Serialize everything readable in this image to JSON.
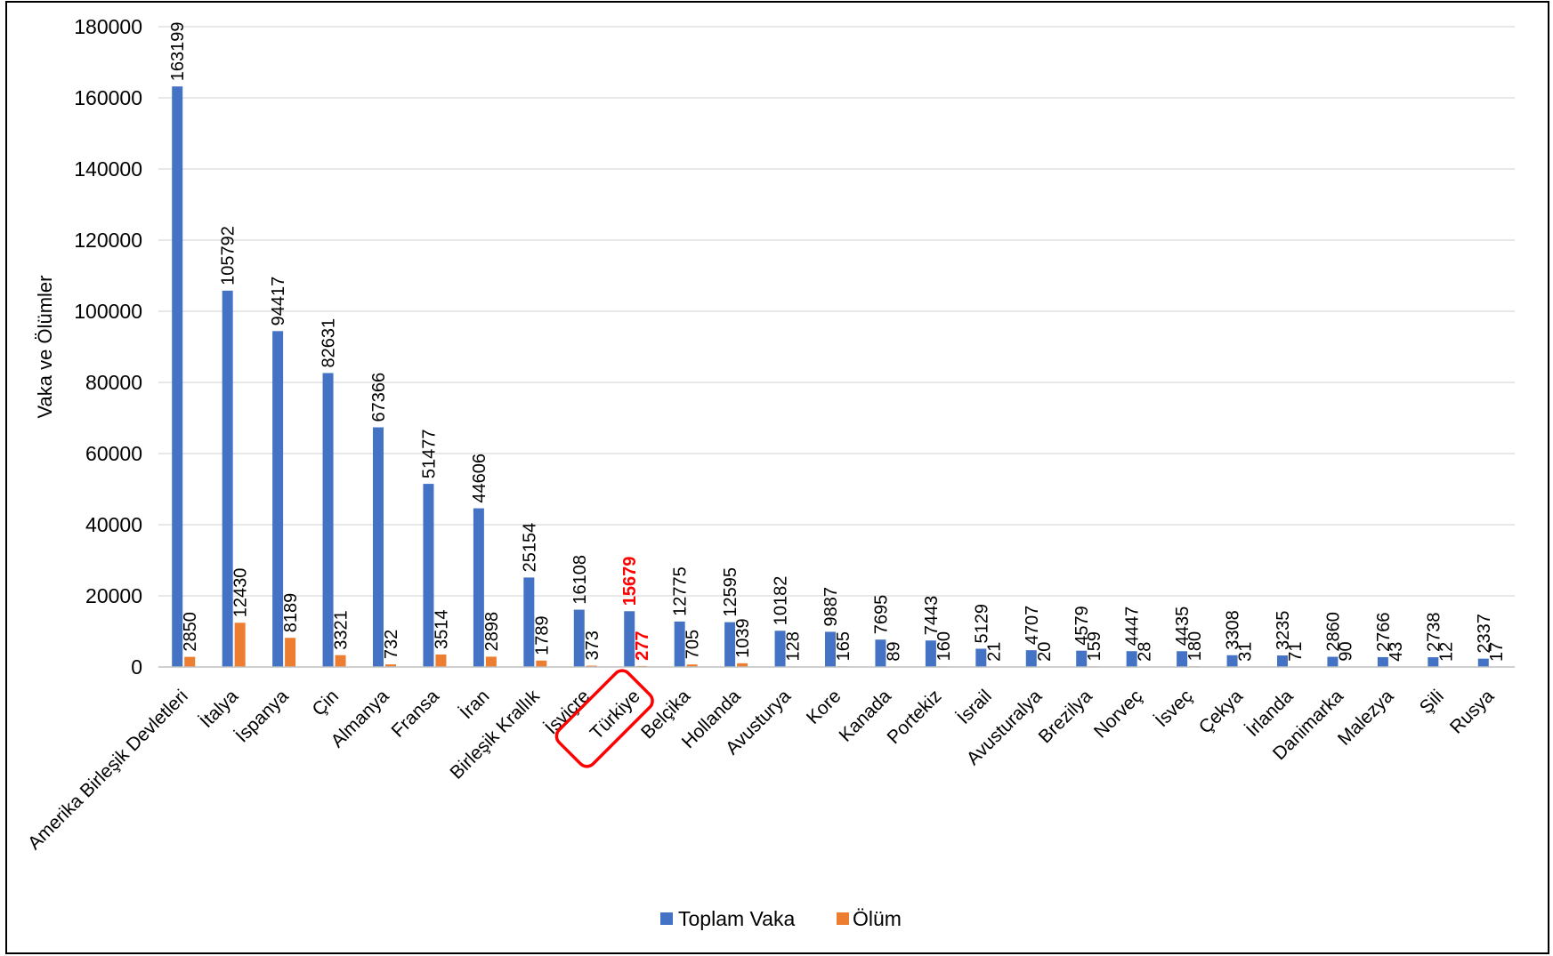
{
  "chart_data": {
    "type": "bar",
    "title": "",
    "xlabel": "",
    "ylabel": "Vaka ve Ölümler",
    "ylim": [
      0,
      180000
    ],
    "yticks": [
      0,
      20000,
      40000,
      60000,
      80000,
      100000,
      120000,
      140000,
      160000,
      180000
    ],
    "grid": true,
    "legend_position": "bottom",
    "highlighted_category": "Türkiye",
    "highlight_color": "#ff0000",
    "categories": [
      "Amerika Birleşik Devletleri",
      "İtalya",
      "İspanya",
      "Çin",
      "Almanya",
      "Fransa",
      "İran",
      "Birleşik Krallık",
      "İsviçre",
      "Türkiye",
      "Belçika",
      "Hollanda",
      "Avusturya",
      "Kore",
      "Kanada",
      "Portekiz",
      "İsrail",
      "Avusturalya",
      "Brezilya",
      "Norveç",
      "İsveç",
      "Çekya",
      "İrlanda",
      "Danimarka",
      "Malezya",
      "Şili",
      "Rusya"
    ],
    "series": [
      {
        "name": "Toplam Vaka",
        "color": "#4472c4",
        "values": [
          163199,
          105792,
          94417,
          82631,
          67366,
          51477,
          44606,
          25154,
          16108,
          15679,
          12775,
          12595,
          10182,
          9887,
          7695,
          7443,
          5129,
          4707,
          4579,
          4447,
          4435,
          3308,
          3235,
          2860,
          2766,
          2738,
          2337
        ]
      },
      {
        "name": "Ölüm",
        "color": "#ed7d31",
        "values": [
          2850,
          12430,
          8189,
          3321,
          732,
          3514,
          2898,
          1789,
          373,
          277,
          705,
          1039,
          128,
          165,
          89,
          160,
          21,
          20,
          159,
          28,
          180,
          31,
          71,
          90,
          43,
          12,
          17
        ]
      }
    ]
  }
}
